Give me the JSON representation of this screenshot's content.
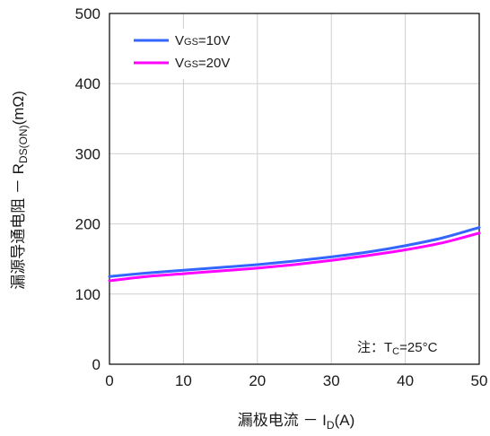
{
  "chart_data": {
    "type": "line",
    "xlabel": "漏极电流 － I",
    "xlabel_sub": "D",
    "xlabel_unit": "(A)",
    "ylabel": "漏源导通电阻 － R",
    "ylabel_sub": "DS(ON)",
    "ylabel_unit": "(mΩ)",
    "xlim": [
      0,
      50
    ],
    "ylim": [
      0,
      500
    ],
    "x_ticks": [
      "0",
      "10",
      "20",
      "30",
      "40",
      "50"
    ],
    "y_ticks": [
      "0",
      "100",
      "200",
      "300",
      "400",
      "500"
    ],
    "x_tick_values": [
      0,
      10,
      20,
      30,
      40,
      50
    ],
    "y_tick_values": [
      0,
      100,
      200,
      300,
      400,
      500
    ],
    "grid": true,
    "legend_position": "top-left",
    "series": [
      {
        "name": "V",
        "name_sub": "GS",
        "name_suffix": "=10V",
        "color": "#3366ff",
        "x": [
          0,
          5,
          10,
          15,
          20,
          25,
          30,
          35,
          40,
          45,
          50
        ],
        "y": [
          125,
          130,
          134,
          138,
          142,
          147,
          153,
          160,
          169,
          180,
          195
        ]
      },
      {
        "name": "V",
        "name_sub": "GS",
        "name_suffix": "=20V",
        "color": "#ff00ff",
        "x": [
          0,
          5,
          10,
          15,
          20,
          25,
          30,
          35,
          40,
          45,
          50
        ],
        "y": [
          119,
          125,
          129,
          133,
          137,
          142,
          148,
          155,
          163,
          173,
          187
        ]
      }
    ],
    "annotation": {
      "prefix": "注：T",
      "sub": "C",
      "suffix": "=25°C"
    }
  }
}
